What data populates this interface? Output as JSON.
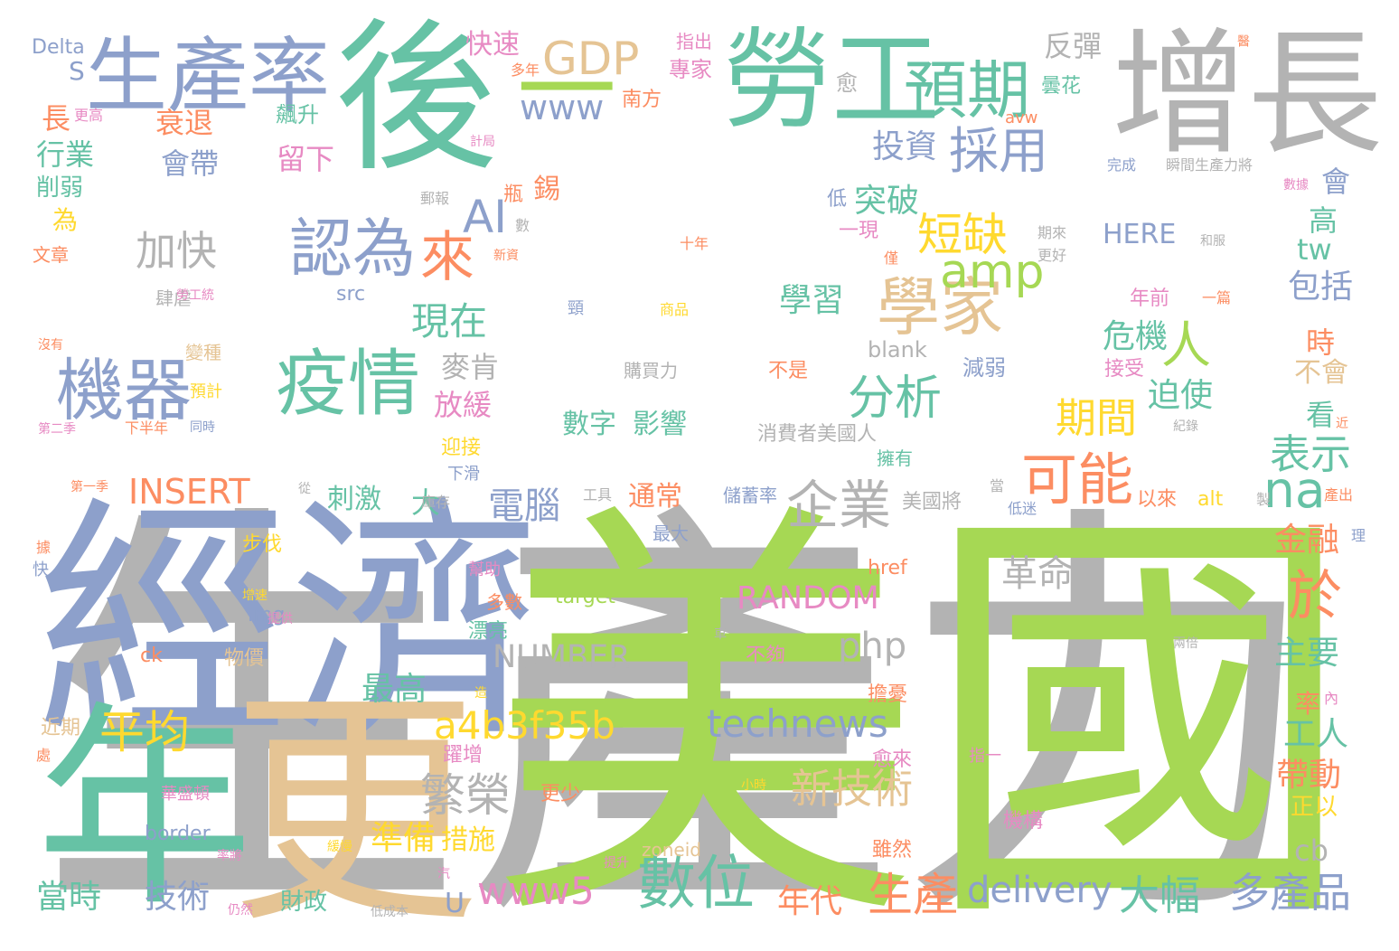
{
  "palette": {
    "gray": "#b3b3b3",
    "green": "#66c2a5",
    "lime": "#a6d854",
    "blue": "#8da0cb",
    "tan": "#e5c494",
    "orange": "#fc8d62",
    "pink": "#e78ac3",
    "yellow": "#ffd92f"
  },
  "words": [
    {
      "text": "生產力",
      "color": "gray",
      "weight": 1.0
    },
    {
      "text": "美國",
      "color": "lime",
      "weight": 0.92
    },
    {
      "text": "經濟",
      "color": "blue",
      "weight": 0.62
    },
    {
      "text": "更",
      "color": "tan",
      "weight": 0.55
    },
    {
      "text": "後",
      "color": "green",
      "weight": 0.48
    },
    {
      "text": "年",
      "color": "green",
      "weight": 0.42
    },
    {
      "text": "增長",
      "color": "gray",
      "weight": 0.36
    },
    {
      "text": "勞工",
      "color": "green",
      "weight": 0.3
    },
    {
      "text": "生產率",
      "color": "blue",
      "weight": 0.26
    },
    {
      "text": "疫情",
      "color": "green",
      "weight": 0.22
    },
    {
      "text": "機器",
      "color": "blue",
      "weight": 0.2
    },
    {
      "text": "預期",
      "color": "green",
      "weight": 0.19
    },
    {
      "text": "學家",
      "color": "tan",
      "weight": 0.19
    },
    {
      "text": "認為",
      "color": "blue",
      "weight": 0.18
    },
    {
      "text": "一",
      "color": "lime",
      "weight": 0.17
    },
    {
      "text": "GDP",
      "color": "tan",
      "weight": 0.17
    },
    {
      "text": "數位",
      "color": "green",
      "weight": 0.16
    },
    {
      "text": "可能",
      "color": "orange",
      "weight": 0.16
    },
    {
      "text": "企業",
      "color": "gray",
      "weight": 0.15
    },
    {
      "text": "分析",
      "color": "green",
      "weight": 0.15
    },
    {
      "text": "amp",
      "color": "lime",
      "weight": 0.15
    },
    {
      "text": "來",
      "color": "orange",
      "weight": 0.15
    },
    {
      "text": "於",
      "color": "orange",
      "weight": 0.15
    },
    {
      "text": "採用",
      "color": "blue",
      "weight": 0.14
    },
    {
      "text": "短缺",
      "color": "yellow",
      "weight": 0.14
    },
    {
      "text": "人",
      "color": "lime",
      "weight": 0.14
    },
    {
      "text": "na",
      "color": "green",
      "weight": 0.14
    },
    {
      "text": "繁榮",
      "color": "gray",
      "weight": 0.13
    },
    {
      "text": "平均",
      "color": "yellow",
      "weight": 0.13
    },
    {
      "text": "生產",
      "color": "orange",
      "weight": 0.13
    },
    {
      "text": "多產品",
      "color": "blue",
      "weight": 0.12
    },
    {
      "text": "大幅",
      "color": "green",
      "weight": 0.12
    },
    {
      "text": "新技術",
      "color": "tan",
      "weight": 0.12
    },
    {
      "text": "technews",
      "color": "blue",
      "weight": 0.12
    },
    {
      "text": "a4b3f35b",
      "color": "yellow",
      "weight": 0.12
    },
    {
      "text": "加快",
      "color": "gray",
      "weight": 0.11
    },
    {
      "text": "現在",
      "color": "green",
      "weight": 0.11
    },
    {
      "text": "表示",
      "color": "green",
      "weight": 0.11
    },
    {
      "text": "期間",
      "color": "yellow",
      "weight": 0.11
    },
    {
      "text": "AI",
      "color": "blue",
      "weight": 0.11
    },
    {
      "text": "www5",
      "color": "pink",
      "weight": 0.11
    },
    {
      "text": "delivery",
      "color": "blue",
      "weight": 0.11
    },
    {
      "text": "www",
      "color": "blue",
      "weight": 0.1
    },
    {
      "text": "INSERT",
      "color": "orange",
      "weight": 0.1
    },
    {
      "text": "RANDOM",
      "color": "pink",
      "weight": 0.1
    },
    {
      "text": "NUMBER",
      "color": "gray",
      "weight": 0.1
    },
    {
      "text": "php",
      "color": "gray",
      "weight": 0.1
    },
    {
      "text": "電腦",
      "color": "blue",
      "weight": 0.1
    },
    {
      "text": "革命",
      "color": "gray",
      "weight": 0.1
    },
    {
      "text": "突破",
      "color": "green",
      "weight": 0.09
    },
    {
      "text": "投資",
      "color": "blue",
      "weight": 0.09
    },
    {
      "text": "學習",
      "color": "green",
      "weight": 0.09
    },
    {
      "text": "危機",
      "color": "green",
      "weight": 0.09
    },
    {
      "text": "迫使",
      "color": "green",
      "weight": 0.09
    },
    {
      "text": "金融",
      "color": "orange",
      "weight": 0.09
    },
    {
      "text": "帶動",
      "color": "orange",
      "weight": 0.09
    },
    {
      "text": "工人",
      "color": "green",
      "weight": 0.09
    },
    {
      "text": "主要",
      "color": "green",
      "weight": 0.09
    },
    {
      "text": "包括",
      "color": "blue",
      "weight": 0.09
    },
    {
      "text": "最高",
      "color": "green",
      "weight": 0.09
    },
    {
      "text": "準備",
      "color": "yellow",
      "weight": 0.09
    },
    {
      "text": "當時",
      "color": "green",
      "weight": 0.09
    },
    {
      "text": "技術",
      "color": "blue",
      "weight": 0.09
    },
    {
      "text": "年代",
      "color": "orange",
      "weight": 0.09
    },
    {
      "text": "數字",
      "color": "green",
      "weight": 0.08
    },
    {
      "text": "影響",
      "color": "green",
      "weight": 0.08
    },
    {
      "text": "快速",
      "color": "pink",
      "weight": 0.08
    },
    {
      "text": "反彈",
      "color": "gray",
      "weight": 0.08
    },
    {
      "text": "衰退",
      "color": "orange",
      "weight": 0.08
    },
    {
      "text": "會帶",
      "color": "blue",
      "weight": 0.08
    },
    {
      "text": "留下",
      "color": "pink",
      "weight": 0.08
    },
    {
      "text": "行業",
      "color": "green",
      "weight": 0.08
    },
    {
      "text": "麥肯",
      "color": "gray",
      "weight": 0.08
    },
    {
      "text": "放緩",
      "color": "pink",
      "weight": 0.08
    },
    {
      "text": "刺激",
      "color": "green",
      "weight": 0.07
    },
    {
      "text": "通常",
      "color": "orange",
      "weight": 0.07
    },
    {
      "text": "措施",
      "color": "yellow",
      "weight": 0.07
    },
    {
      "text": "財政",
      "color": "green",
      "weight": 0.07
    },
    {
      "text": "cb",
      "color": "gray",
      "weight": 0.07
    },
    {
      "text": "tw",
      "color": "green",
      "weight": 0.07
    },
    {
      "text": "S",
      "color": "blue",
      "weight": 0.07
    },
    {
      "text": "長",
      "color": "orange",
      "weight": 0.07
    },
    {
      "text": "為",
      "color": "yellow",
      "weight": 0.07
    },
    {
      "text": "高",
      "color": "green",
      "weight": 0.07
    },
    {
      "text": "會",
      "color": "blue",
      "weight": 0.07
    },
    {
      "text": "大",
      "color": "green",
      "weight": 0.07
    },
    {
      "text": "時",
      "color": "orange",
      "weight": 0.07
    },
    {
      "text": "看",
      "color": "green",
      "weight": 0.07
    },
    {
      "text": "不會",
      "color": "tan",
      "weight": 0.07
    },
    {
      "text": "率",
      "color": "orange",
      "weight": 0.07
    },
    {
      "text": "正以",
      "color": "yellow",
      "weight": 0.06
    },
    {
      "text": "U",
      "color": "blue",
      "weight": 0.06
    },
    {
      "text": "削弱",
      "color": "green",
      "weight": 0.06
    },
    {
      "text": "錫",
      "color": "orange",
      "weight": 0.06
    },
    {
      "text": "HERE",
      "color": "blue",
      "weight": 0.06
    },
    {
      "text": "Delta",
      "color": "blue",
      "weight": 0.05
    },
    {
      "text": "專家",
      "color": "pink",
      "weight": 0.05
    },
    {
      "text": "南方",
      "color": "orange",
      "weight": 0.05
    },
    {
      "text": "曇花",
      "color": "green",
      "weight": 0.05
    },
    {
      "text": "飆升",
      "color": "green",
      "weight": 0.05
    },
    {
      "text": "愈",
      "color": "gray",
      "weight": 0.05
    },
    {
      "text": "低",
      "color": "blue",
      "weight": 0.05
    },
    {
      "text": "瓶",
      "color": "orange",
      "weight": 0.05
    },
    {
      "text": "一現",
      "color": "pink",
      "weight": 0.05
    },
    {
      "text": "src",
      "color": "blue",
      "weight": 0.05
    },
    {
      "text": "blank",
      "color": "gray",
      "weight": 0.05
    },
    {
      "text": "減弱",
      "color": "blue",
      "weight": 0.05
    },
    {
      "text": "年前",
      "color": "pink",
      "weight": 0.05
    },
    {
      "text": "接受",
      "color": "pink",
      "weight": 0.05
    },
    {
      "text": "不是",
      "color": "orange",
      "weight": 0.05
    },
    {
      "text": "購買力",
      "color": "gray",
      "weight": 0.05
    },
    {
      "text": "消費者美國人",
      "color": "gray",
      "weight": 0.05
    },
    {
      "text": "擁有",
      "color": "green",
      "weight": 0.05
    },
    {
      "text": "以來",
      "color": "orange",
      "weight": 0.05
    },
    {
      "text": "alt",
      "color": "yellow",
      "weight": 0.05
    },
    {
      "text": "美國將",
      "color": "gray",
      "weight": 0.05
    },
    {
      "text": "最大",
      "color": "blue",
      "weight": 0.05
    },
    {
      "text": "儲蓄率",
      "color": "blue",
      "weight": 0.05
    },
    {
      "text": "迎接",
      "color": "yellow",
      "weight": 0.05
    },
    {
      "text": "下滑",
      "color": "blue",
      "weight": 0.05
    },
    {
      "text": "步伐",
      "color": "yellow",
      "weight": 0.05
    },
    {
      "text": "幫助",
      "color": "pink",
      "weight": 0.05
    },
    {
      "text": "多數",
      "color": "orange",
      "weight": 0.05
    },
    {
      "text": "漂亮",
      "color": "green",
      "weight": 0.05
    },
    {
      "text": "img",
      "color": "blue",
      "weight": 0.05
    },
    {
      "text": "target",
      "color": "lime",
      "weight": 0.05
    },
    {
      "text": "href",
      "color": "orange",
      "weight": 0.05
    },
    {
      "text": "不夠",
      "color": "pink",
      "weight": 0.05
    },
    {
      "text": "ck",
      "color": "orange",
      "weight": 0.05
    },
    {
      "text": "物價",
      "color": "tan",
      "weight": 0.05
    },
    {
      "text": "擔憂",
      "color": "orange",
      "weight": 0.05
    },
    {
      "text": "近期",
      "color": "tan",
      "weight": 0.05
    },
    {
      "text": "躍增",
      "color": "pink",
      "weight": 0.05
    },
    {
      "text": "愈來",
      "color": "pink",
      "weight": 0.05
    },
    {
      "text": "更少",
      "color": "orange",
      "weight": 0.05
    },
    {
      "text": "機構",
      "color": "pink",
      "weight": 0.05
    },
    {
      "text": "雖然",
      "color": "orange",
      "weight": 0.05
    },
    {
      "text": "border",
      "color": "blue",
      "weight": 0.05
    },
    {
      "text": "zoneid",
      "color": "tan",
      "weight": 0.05
    },
    {
      "text": "指一",
      "color": "pink",
      "weight": 0.04
    },
    {
      "text": "華盛頓",
      "color": "pink",
      "weight": 0.04
    },
    {
      "text": "變種",
      "color": "tan",
      "weight": 0.04
    },
    {
      "text": "預計",
      "color": "yellow",
      "weight": 0.04
    },
    {
      "text": "肆虐",
      "color": "gray",
      "weight": 0.04
    },
    {
      "text": "文章",
      "color": "orange",
      "weight": 0.04
    },
    {
      "text": "指出",
      "color": "pink",
      "weight": 0.04
    },
    {
      "text": "多年",
      "color": "orange",
      "weight": 0.03
    },
    {
      "text": "更高",
      "color": "pink",
      "weight": 0.03
    },
    {
      "text": "計局",
      "color": "pink",
      "weight": 0.03
    },
    {
      "text": "郵報",
      "color": "gray",
      "weight": 0.03
    },
    {
      "text": "數",
      "color": "gray",
      "weight": 0.03
    },
    {
      "text": "新資",
      "color": "orange",
      "weight": 0.03
    },
    {
      "text": "十年",
      "color": "orange",
      "weight": 0.03
    },
    {
      "text": "頸",
      "color": "blue",
      "weight": 0.03
    },
    {
      "text": "商品",
      "color": "yellow",
      "weight": 0.03
    },
    {
      "text": "勞工統",
      "color": "pink",
      "weight": 0.03
    },
    {
      "text": "沒有",
      "color": "orange",
      "weight": 0.03
    },
    {
      "text": "第二季",
      "color": "pink",
      "weight": 0.03
    },
    {
      "text": "下半年",
      "color": "orange",
      "weight": 0.03
    },
    {
      "text": "同時",
      "color": "blue",
      "weight": 0.03
    },
    {
      "text": "第一季",
      "color": "orange",
      "weight": 0.03
    },
    {
      "text": "從",
      "color": "gray",
      "weight": 0.03
    },
    {
      "text": "庫存",
      "color": "gray",
      "weight": 0.03
    },
    {
      "text": "工具",
      "color": "gray",
      "weight": 0.03
    },
    {
      "text": "當",
      "color": "gray",
      "weight": 0.03
    },
    {
      "text": "低迷",
      "color": "blue",
      "weight": 0.03
    },
    {
      "text": "製",
      "color": "gray",
      "weight": 0.03
    },
    {
      "text": "產出",
      "color": "orange",
      "weight": 0.03
    },
    {
      "text": "理",
      "color": "blue",
      "weight": 0.03
    },
    {
      "text": "增速",
      "color": "yellow",
      "weight": 0.03
    },
    {
      "text": "提供",
      "color": "pink",
      "weight": 0.03
    },
    {
      "text": "車",
      "color": "gray",
      "weight": 0.03
    },
    {
      "text": "兩倍",
      "color": "gray",
      "weight": 0.03
    },
    {
      "text": "內",
      "color": "pink",
      "weight": 0.03
    },
    {
      "text": "據",
      "color": "orange",
      "weight": 0.03
    },
    {
      "text": "快",
      "color": "blue",
      "weight": 0.03
    },
    {
      "text": "造",
      "color": "yellow",
      "weight": 0.03
    },
    {
      "text": "處",
      "color": "orange",
      "weight": 0.03
    },
    {
      "text": "小時",
      "color": "yellow",
      "weight": 0.03
    },
    {
      "text": "率將",
      "color": "pink",
      "weight": 0.03
    },
    {
      "text": "緩慢",
      "color": "yellow",
      "weight": 0.03
    },
    {
      "text": "提升",
      "color": "pink",
      "weight": 0.03
    },
    {
      "text": "仍然",
      "color": "pink",
      "weight": 0.03
    },
    {
      "text": "低成本",
      "color": "gray",
      "weight": 0.03
    },
    {
      "text": "汽",
      "color": "pink",
      "weight": 0.03
    },
    {
      "text": "完成",
      "color": "blue",
      "weight": 0.03
    },
    {
      "text": "瞬間生產力將",
      "color": "gray",
      "weight": 0.03
    },
    {
      "text": "數據",
      "color": "pink",
      "weight": 0.03
    },
    {
      "text": "和服",
      "color": "gray",
      "weight": 0.03
    },
    {
      "text": "更好",
      "color": "gray",
      "weight": 0.03
    },
    {
      "text": "期來",
      "color": "gray",
      "weight": 0.03
    },
    {
      "text": "僅",
      "color": "orange",
      "weight": 0.03
    },
    {
      "text": "一篇",
      "color": "orange",
      "weight": 0.03
    },
    {
      "text": "紀錄",
      "color": "gray",
      "weight": 0.03
    },
    {
      "text": "近",
      "color": "orange",
      "weight": 0.03
    },
    {
      "text": "醫",
      "color": "orange",
      "weight": 0.03
    },
    {
      "text": "avw",
      "color": "orange",
      "weight": 0.03
    }
  ]
}
